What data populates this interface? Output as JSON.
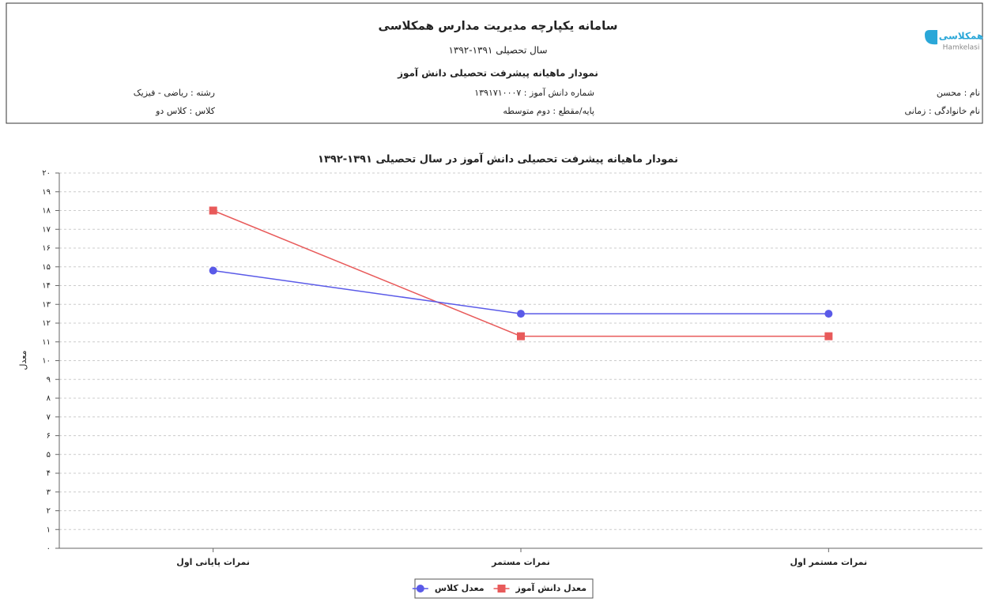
{
  "header": {
    "logo_text": "همکلاسی",
    "logo_latin": "Hamkelasi",
    "title": "سامانه یکپارچه مدیریت مدارس همکلاسی",
    "year": "سال تحصیلی ۱۳۹۱-۱۳۹۲",
    "subtitle": "نمودار ماهیانه پیشرفت تحصیلی دانش آموز",
    "fields": [
      [
        "نام : محسن",
        "شماره دانش آموز : ۱۳۹۱۷۱۰۰۰۷",
        "رشته : ریاضی - فیزیک"
      ],
      [
        "نام خانوادگی : زمانی",
        "پایه/مقطع : دوم متوسطه",
        "کلاس : کلاس دو"
      ]
    ]
  },
  "chart_data": {
    "type": "line",
    "title": "نمودار ماهیانه پیشرفت تحصیلی دانش آموز در سال تحصیلی ۱۳۹۱-۱۳۹۲",
    "y_label": "معدل",
    "categories": [
      "نمرات پایانی اول",
      "نمرات مستمر",
      "نمرات مستمر اول"
    ],
    "series": [
      {
        "name": "معدل دانش آموز",
        "color": "#e85a5a",
        "marker": "square",
        "values": [
          18,
          11.3,
          11.3
        ]
      },
      {
        "name": "معدل کلاس",
        "color": "#5a5ae8",
        "marker": "circle",
        "values": [
          14.8,
          12.5,
          12.5
        ]
      }
    ],
    "ylim": [
      0,
      20
    ],
    "yticks": [
      {
        "value": 0,
        "label": "۰"
      },
      {
        "value": 1,
        "label": "۱"
      },
      {
        "value": 2,
        "label": "۲"
      },
      {
        "value": 3,
        "label": "۳"
      },
      {
        "value": 4,
        "label": "۴"
      },
      {
        "value": 5,
        "label": "۵"
      },
      {
        "value": 6,
        "label": "۶"
      },
      {
        "value": 7,
        "label": "۷"
      },
      {
        "value": 8,
        "label": "۸"
      },
      {
        "value": 9,
        "label": "۹"
      },
      {
        "value": 10,
        "label": "۱۰"
      },
      {
        "value": 11,
        "label": "۱۱"
      },
      {
        "value": 12,
        "label": "۱۲"
      },
      {
        "value": 13,
        "label": "۱۳"
      },
      {
        "value": 14,
        "label": "۱۴"
      },
      {
        "value": 15,
        "label": "۱۵"
      },
      {
        "value": 16,
        "label": "۱۶"
      },
      {
        "value": 17,
        "label": "۱۷"
      },
      {
        "value": 18,
        "label": "۱۸"
      },
      {
        "value": 19,
        "label": "۱۹"
      },
      {
        "value": 20,
        "label": "۲۰"
      }
    ],
    "grid": true,
    "legend": "bottom"
  }
}
